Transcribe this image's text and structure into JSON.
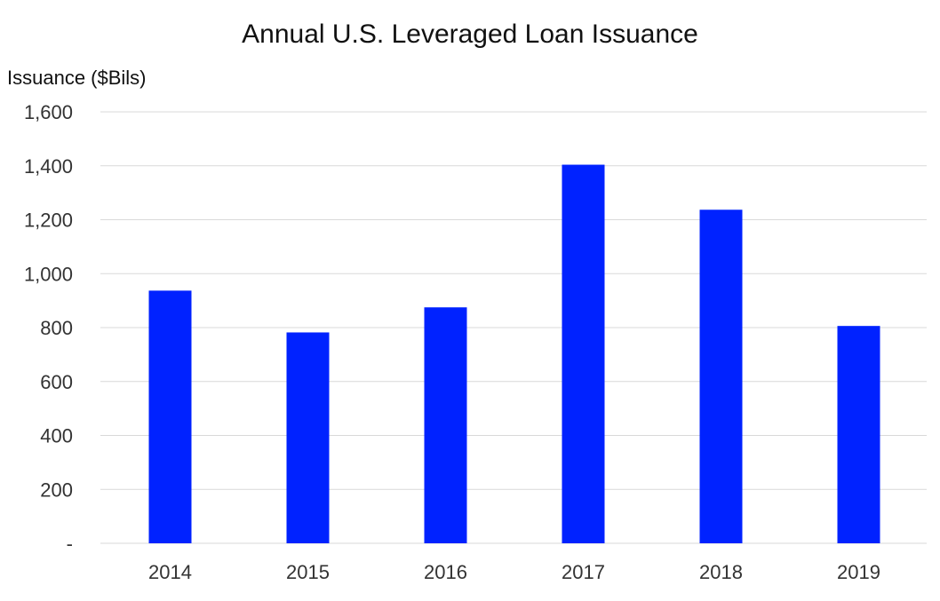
{
  "chart_data": {
    "type": "bar",
    "title": "Annual U.S. Leveraged Loan Issuance",
    "ylabel": "Issuance ($Bils)",
    "xlabel": "",
    "categories": [
      "2014",
      "2015",
      "2016",
      "2017",
      "2018",
      "2019"
    ],
    "values": [
      937,
      782,
      875,
      1404,
      1237,
      806
    ],
    "ylim": [
      0,
      1600
    ],
    "yticks": [
      0,
      200,
      400,
      600,
      800,
      1000,
      1200,
      1400,
      1600
    ],
    "ytick_labels": [
      "-",
      "200",
      "400",
      "600",
      "800",
      "1,000",
      "1,200",
      "1,400",
      "1,600"
    ],
    "grid": true,
    "legend": "none",
    "bar_color": "#0022ff",
    "grid_color": "#d9d9d9"
  }
}
